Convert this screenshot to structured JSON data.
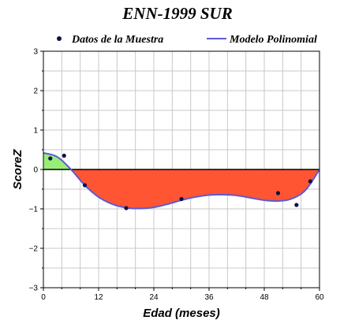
{
  "chart_data": {
    "type": "line",
    "title": "ENN-1999 SUR",
    "xlabel": "Edad (meses)",
    "ylabel": "ScoreZ",
    "xlim": [
      0,
      60
    ],
    "ylim": [
      -3,
      3
    ],
    "xticks": [
      0,
      12,
      24,
      36,
      48,
      60
    ],
    "yticks": [
      -3,
      -2,
      -1,
      0,
      1,
      2,
      3
    ],
    "grid": true,
    "legend_position": "top",
    "series": [
      {
        "name": "Datos de la Muestra",
        "kind": "scatter",
        "color": "#0d1447",
        "x": [
          1.5,
          4.5,
          9,
          18,
          30,
          51,
          55,
          58
        ],
        "y": [
          0.28,
          0.35,
          -0.4,
          -0.98,
          -0.75,
          -0.6,
          -0.9,
          -0.3
        ]
      },
      {
        "name": "Modelo Polinomial",
        "kind": "line",
        "color": "#5b5bd6",
        "x": [
          0,
          3,
          6,
          9,
          12,
          15,
          18,
          21,
          24,
          27,
          30,
          33,
          36,
          39,
          42,
          45,
          48,
          51,
          54,
          57,
          60
        ],
        "y": [
          0.42,
          0.32,
          0.0,
          -0.4,
          -0.7,
          -0.88,
          -0.97,
          -0.99,
          -0.96,
          -0.88,
          -0.78,
          -0.7,
          -0.65,
          -0.64,
          -0.66,
          -0.72,
          -0.78,
          -0.8,
          -0.74,
          -0.52,
          0.0
        ]
      }
    ],
    "fill_colors": {
      "positive": "#99ee77",
      "negative": "#ff5533"
    }
  }
}
